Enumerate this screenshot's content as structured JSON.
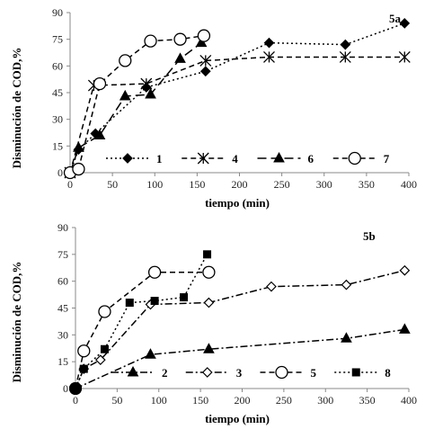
{
  "chart_data": [
    {
      "type": "line",
      "panel_label": "5a",
      "xlabel": "tiempo (min)",
      "ylabel": "Disminución  de   COD,%",
      "xlim": [
        0,
        400
      ],
      "ylim": [
        0,
        90
      ],
      "xticks": [
        "0",
        "50",
        "100",
        "150",
        "200",
        "250",
        "300",
        "350",
        "400"
      ],
      "yticks": [
        "0",
        "15",
        "30",
        "45",
        "60",
        "75",
        "90"
      ],
      "grid": false,
      "legend_position": "bottom",
      "series": [
        {
          "name": "1",
          "marker": "diamond",
          "line": "dotted",
          "x": [
            0,
            10,
            30,
            90,
            160,
            235,
            325,
            395
          ],
          "y": [
            0,
            13,
            22,
            48,
            57,
            73,
            72,
            84
          ]
        },
        {
          "name": "4",
          "marker": "star",
          "line": "dashed",
          "x": [
            0,
            28,
            90,
            160,
            235,
            325,
            395
          ],
          "y": [
            0,
            49,
            50,
            63,
            65,
            65,
            65
          ]
        },
        {
          "name": "6",
          "marker": "triangle",
          "line": "longdash",
          "x": [
            0,
            10,
            35,
            65,
            95,
            130,
            155
          ],
          "y": [
            0,
            14,
            21,
            43,
            44,
            64,
            73
          ]
        },
        {
          "name": "7",
          "marker": "circle-open",
          "line": "dashed",
          "x": [
            0,
            10,
            35,
            65,
            95,
            130,
            158
          ],
          "y": [
            0,
            2,
            50,
            63,
            74,
            75,
            77
          ]
        }
      ]
    },
    {
      "type": "line",
      "panel_label": "5b",
      "xlabel": "tiempo (min)",
      "ylabel": "Disminución de COD,%",
      "xlim": [
        0,
        400
      ],
      "ylim": [
        0,
        90
      ],
      "xticks": [
        "0",
        "50",
        "100",
        "150",
        "200",
        "250",
        "300",
        "350",
        "400"
      ],
      "yticks": [
        "0",
        "15",
        "30",
        "45",
        "60",
        "75",
        "90"
      ],
      "grid": false,
      "legend_position": "bottom",
      "series": [
        {
          "name": "2",
          "marker": "triangle",
          "line": "dashdot",
          "x": [
            0,
            90,
            160,
            325,
            395
          ],
          "y": [
            0,
            19,
            22,
            28,
            33
          ]
        },
        {
          "name": "3",
          "marker": "diamond-open",
          "line": "dashdot",
          "x": [
            0,
            10,
            30,
            90,
            160,
            235,
            325,
            395
          ],
          "y": [
            0,
            11,
            16,
            47,
            48,
            57,
            58,
            66
          ]
        },
        {
          "name": "5",
          "marker": "circle-open",
          "line": "dashed",
          "x": [
            0,
            10,
            35,
            95,
            160
          ],
          "y": [
            0,
            21,
            43,
            65,
            65
          ]
        },
        {
          "name": "8",
          "marker": "square",
          "line": "dotted",
          "x": [
            0,
            10,
            35,
            65,
            95,
            130,
            158
          ],
          "y": [
            0,
            11,
            22,
            48,
            49,
            51,
            75
          ]
        }
      ]
    }
  ]
}
